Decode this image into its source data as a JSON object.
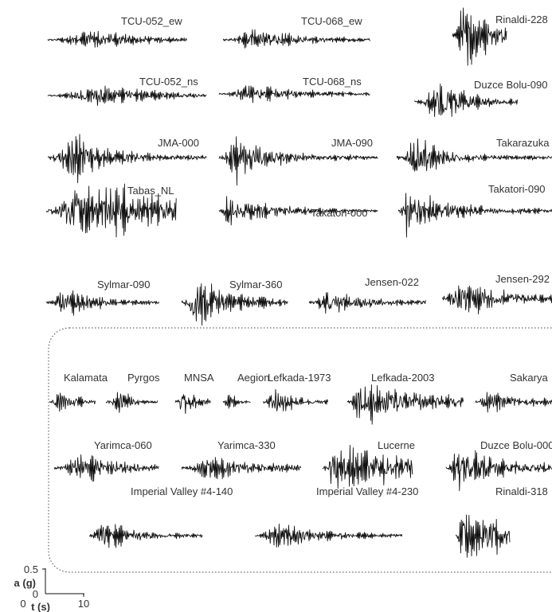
{
  "records": [
    {
      "label": "TCU-052_ew"
    },
    {
      "label": "TCU-068_ew"
    },
    {
      "label": "Rinaldi-228"
    },
    {
      "label": "TCU-052_ns"
    },
    {
      "label": "TCU-068_ns"
    },
    {
      "label": "Duzce Bolu-090"
    },
    {
      "label": "JMA-000"
    },
    {
      "label": "JMA-090"
    },
    {
      "label": "Takarazuka"
    },
    {
      "label": "Tabas_NL"
    },
    {
      "label": "Takatori-000"
    },
    {
      "label": "Takatori-090"
    },
    {
      "label": "Sylmar-090"
    },
    {
      "label": "Sylmar-360"
    },
    {
      "label": "Jensen-022"
    },
    {
      "label": "Jensen-292"
    }
  ],
  "inset_records": [
    {
      "label": "Kalamata"
    },
    {
      "label": "Pyrgos"
    },
    {
      "label": "MNSA"
    },
    {
      "label": "Aegion"
    },
    {
      "label": "Lefkada-1973"
    },
    {
      "label": "Lefkada-2003"
    },
    {
      "label": "Sakarya"
    },
    {
      "label": "Yarimca-060"
    },
    {
      "label": "Yarimca-330"
    },
    {
      "label": "Lucerne"
    },
    {
      "label": "Duzce Bolu-000"
    },
    {
      "label": "Imperial Valley #4-140"
    },
    {
      "label": "Imperial Valley #4-230"
    },
    {
      "label": "Rinaldi-318"
    }
  ],
  "scale": {
    "a_max": 0.5,
    "a_min": 0,
    "a_label": "a (g)",
    "t_min": 0,
    "t_max": 10,
    "t_label": "t (s)"
  }
}
